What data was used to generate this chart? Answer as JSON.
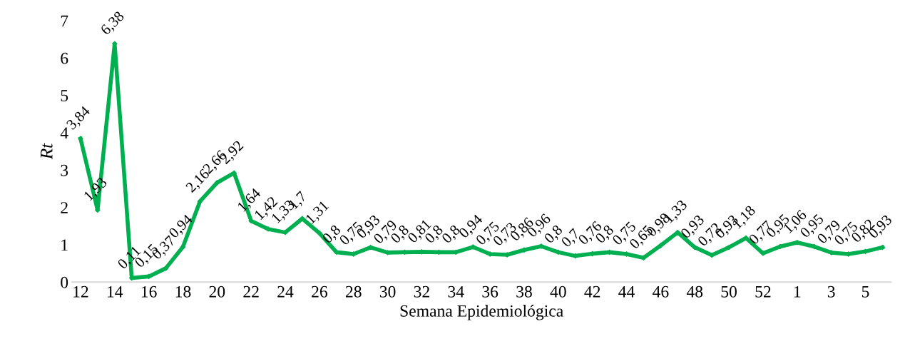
{
  "chart_data": {
    "type": "line",
    "xlabel": "Semana Epidemiológica",
    "ylabel": "Rt",
    "categories": [
      "12",
      null,
      "14",
      null,
      "16",
      null,
      "18",
      null,
      "20",
      null,
      "22",
      null,
      "24",
      null,
      "26",
      null,
      "28",
      null,
      "30",
      null,
      "32",
      null,
      "34",
      null,
      "36",
      null,
      "38",
      null,
      "40",
      null,
      "42",
      null,
      "44",
      null,
      "46",
      null,
      "48",
      null,
      "50",
      null,
      "52",
      null,
      "1",
      null,
      "3",
      null,
      "5",
      null
    ],
    "series": [
      {
        "color": "#00b050",
        "values": [
          3.84,
          1.93,
          6.38,
          0.11,
          0.15,
          0.37,
          0.94,
          2.16,
          2.66,
          2.92,
          1.64,
          1.42,
          1.33,
          1.7,
          1.31,
          0.8,
          0.75,
          0.93,
          0.79,
          0.8,
          0.81,
          0.8,
          0.8,
          0.94,
          0.75,
          0.73,
          0.86,
          0.96,
          0.8,
          0.7,
          0.76,
          0.8,
          0.75,
          0.65,
          0.98,
          1.33,
          0.93,
          0.72,
          0.93,
          1.18,
          0.77,
          0.95,
          1.06,
          0.95,
          0.79,
          0.75,
          0.82,
          0.93
        ],
        "value_labels": [
          "3,84",
          "1,93",
          "6,38",
          "0,11",
          "0,15",
          "0,37",
          "0,94",
          "2,16",
          "2,66",
          "2,92",
          "1,64",
          "1,42",
          "1,33",
          "1,7",
          "1,31",
          "0,8",
          "0,75",
          "0,93",
          "0,79",
          "0,8",
          "0,81",
          "0,8",
          "0,8",
          "0,94",
          "0,75",
          "0,73",
          "0,86",
          "0,96",
          "0,8",
          "0,7",
          "0,76",
          "0,8",
          "0,75",
          "0,65",
          "0,98",
          "1,33",
          "0,93",
          "0,72",
          "0,93",
          "1,18",
          "0,77",
          "0,95",
          "1,06",
          "0,95",
          "0,79",
          "0,75",
          "0,82",
          "0,93"
        ]
      }
    ],
    "ylim": [
      0,
      7
    ],
    "yticks": [
      0,
      1,
      2,
      3,
      4,
      5,
      6,
      7
    ],
    "grid": false,
    "legend": false,
    "marker": "diamond",
    "line_style": "solid"
  }
}
